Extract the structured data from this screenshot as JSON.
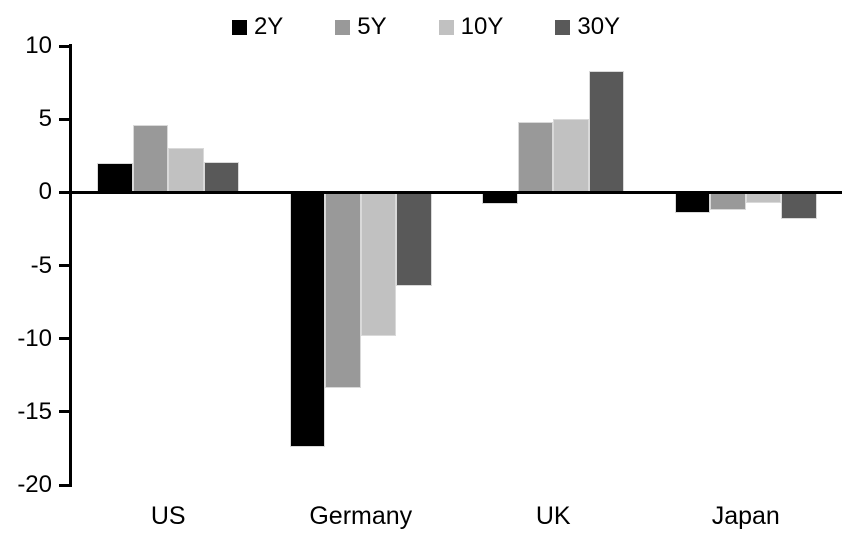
{
  "chart_data": {
    "type": "bar",
    "title": "",
    "xlabel": "",
    "ylabel": "",
    "categories": [
      "US",
      "Germany",
      "UK",
      "Japan"
    ],
    "series": [
      {
        "name": "2Y",
        "color": "#000000",
        "values": [
          2.0,
          -17.4,
          -0.8,
          -1.4
        ]
      },
      {
        "name": "5Y",
        "color": "#999999",
        "values": [
          4.6,
          -13.4,
          4.8,
          -1.2
        ]
      },
      {
        "name": "10Y",
        "color": "#c1c1c1",
        "values": [
          3.0,
          -9.8,
          5.0,
          -0.7
        ]
      },
      {
        "name": "30Y",
        "color": "#595959",
        "values": [
          2.1,
          -6.4,
          8.3,
          -1.8
        ]
      }
    ],
    "ylim": [
      -20,
      10
    ],
    "yticks": [
      10,
      5,
      0,
      -5,
      -10,
      -15,
      -20
    ],
    "legend_position": "top-center",
    "grid": false,
    "baseline": 0,
    "axis_color": "#000000",
    "background_color": "#ffffff",
    "bar_edge_color": "#d9d9d9"
  }
}
